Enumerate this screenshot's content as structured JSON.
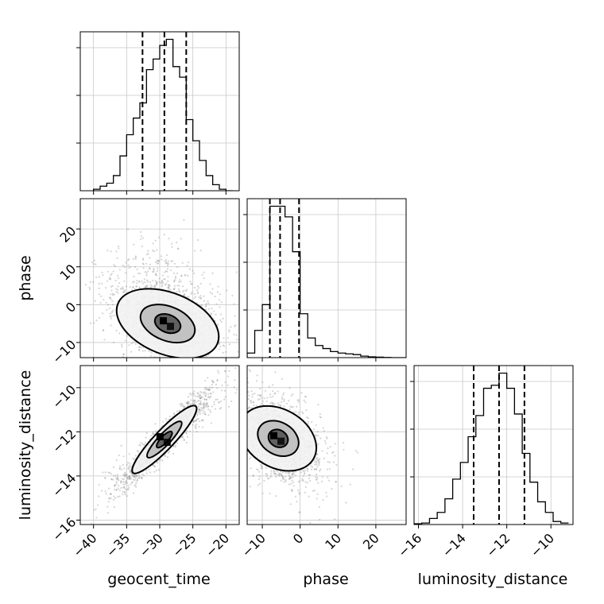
{
  "chart_data": {
    "type": "corner",
    "parameters": [
      "geocent_time",
      "phase",
      "luminosity_distance"
    ],
    "grid": true,
    "ranges": {
      "geocent_time": [
        -42,
        -18
      ],
      "phase": [
        -14,
        28
      ],
      "luminosity_distance": [
        -16.2,
        -9.0
      ]
    },
    "ticks": {
      "geocent_time": [
        -40,
        -35,
        -30,
        -25,
        -20
      ],
      "phase": [
        -10,
        0,
        10,
        20
      ],
      "luminosity_distance": [
        -16,
        -14,
        -12,
        -10
      ]
    },
    "tick_labels": {
      "geocent_time": [
        "−40",
        "−35",
        "−30",
        "−25",
        "−20"
      ],
      "phase": [
        "−10",
        "0",
        "10",
        "20"
      ],
      "luminosity_distance": [
        "−16",
        "−14",
        "−12",
        "−10"
      ]
    },
    "quantiles": {
      "geocent_time": [
        -32.6,
        -29.3,
        -26.0
      ],
      "phase": [
        -8.0,
        -5.3,
        -0.3
      ],
      "luminosity_distance": [
        -13.5,
        -12.35,
        -11.2
      ]
    },
    "histograms": {
      "geocent_time": {
        "bin_edges": [
          -40,
          -39,
          -38,
          -37,
          -36,
          -35,
          -34,
          -33,
          -32,
          -31,
          -30,
          -29,
          -28,
          -27,
          -26,
          -25,
          -24,
          -23,
          -22,
          -21,
          -20,
          -19
        ],
        "counts": [
          0.01,
          0.03,
          0.05,
          0.1,
          0.23,
          0.37,
          0.48,
          0.58,
          0.8,
          0.87,
          0.96,
          1.0,
          0.82,
          0.75,
          0.47,
          0.33,
          0.2,
          0.1,
          0.04,
          0.01,
          0.0
        ]
      },
      "phase": {
        "bin_edges": [
          -14,
          -12,
          -10,
          -8,
          -6,
          -4,
          -2,
          0,
          2,
          4,
          6,
          8,
          10,
          12,
          14,
          16,
          18,
          20,
          22,
          24,
          26,
          28
        ],
        "counts": [
          0.03,
          0.18,
          0.35,
          1.0,
          1.0,
          0.93,
          0.7,
          0.29,
          0.13,
          0.08,
          0.06,
          0.04,
          0.03,
          0.025,
          0.02,
          0.01,
          0.005,
          0.003,
          0.001,
          0,
          0
        ]
      },
      "luminosity_distance": {
        "bin_edges": [
          -16.2,
          -15.85,
          -15.5,
          -15.15,
          -14.8,
          -14.45,
          -14.1,
          -13.75,
          -13.4,
          -13.05,
          -12.7,
          -12.35,
          -12.0,
          -11.65,
          -11.3,
          -10.95,
          -10.6,
          -10.25,
          -9.9,
          -9.55,
          -9.2
        ],
        "counts": [
          0.005,
          0.01,
          0.04,
          0.08,
          0.17,
          0.3,
          0.41,
          0.58,
          0.72,
          0.9,
          0.92,
          1.0,
          0.9,
          0.73,
          0.47,
          0.28,
          0.15,
          0.08,
          0.02,
          0.01
        ]
      }
    },
    "scatter_panels": [
      {
        "x": "geocent_time",
        "y": "phase",
        "center": [
          -28.8,
          -5.0
        ],
        "spread": [
          4.2,
          6.5
        ],
        "correlation": -0.45,
        "levels": [
          0.4,
          0.85,
          1.6
        ]
      },
      {
        "x": "geocent_time",
        "y": "luminosity_distance",
        "center": [
          -29.3,
          -12.35
        ],
        "spread": [
          3.3,
          1.1
        ],
        "correlation": 0.95,
        "levels": [
          0.35,
          0.8,
          1.5
        ]
      },
      {
        "x": "phase",
        "y": "luminosity_distance",
        "center": [
          -5.8,
          -12.3
        ],
        "spread": [
          5.5,
          1.1
        ],
        "correlation": -0.5,
        "levels": [
          0.4,
          0.85,
          1.6
        ]
      }
    ],
    "colors": {
      "line": "#000000",
      "points": "#888888",
      "grid": "#c8c8c8"
    }
  }
}
